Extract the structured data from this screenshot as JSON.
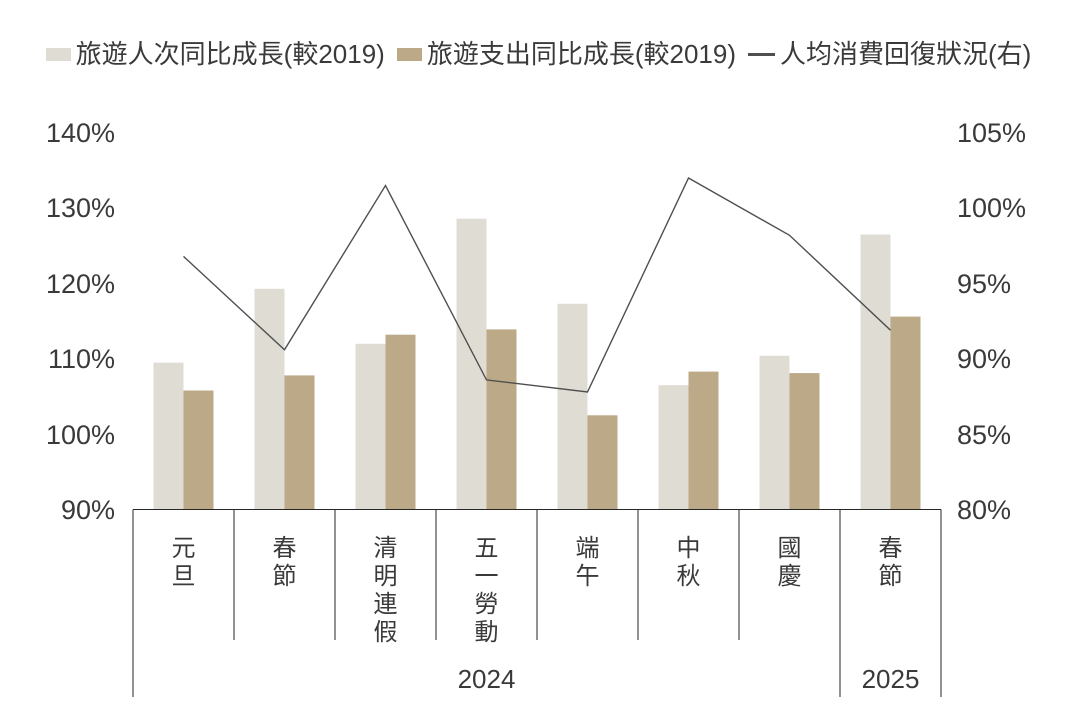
{
  "legend": {
    "items": [
      {
        "label": "旅遊人次同比成長(較2019)",
        "marker": "swatch",
        "color": "#DFDCD4"
      },
      {
        "label": "旅遊支出同比成長(較2019)",
        "marker": "swatch",
        "color": "#BCA987"
      },
      {
        "label": "人均消費回復狀況(右)",
        "marker": "line",
        "color": "#4F4F4F"
      }
    ]
  },
  "left_axis": {
    "ticks": [
      "140%",
      "130%",
      "120%",
      "110%",
      "100%",
      "90%"
    ]
  },
  "right_axis": {
    "ticks": [
      "105%",
      "100%",
      "95%",
      "90%",
      "85%",
      "80%"
    ]
  },
  "chart_data": {
    "type": "bar",
    "subtype": "grouped-bars-with-line-combo",
    "categories": [
      "元旦",
      "春節",
      "清明連假",
      "五一勞動",
      "端午",
      "中秋",
      "國慶",
      "春節"
    ],
    "year_groups": [
      {
        "label": "2024",
        "span": 7
      },
      {
        "label": "2025",
        "span": 1
      }
    ],
    "series": [
      {
        "name": "旅遊人次同比成長(較2019)",
        "type": "bar",
        "axis": "left",
        "color": "#DFDCD4",
        "values": [
          109.5,
          119.3,
          112.0,
          128.6,
          117.3,
          106.5,
          110.4,
          126.5
        ]
      },
      {
        "name": "旅遊支出同比成長(較2019)",
        "type": "bar",
        "axis": "left",
        "color": "#BCA987",
        "values": [
          105.8,
          107.8,
          113.2,
          113.9,
          102.5,
          108.3,
          108.1,
          115.6
        ]
      },
      {
        "name": "人均消費回復狀況(右)",
        "type": "line",
        "axis": "right",
        "color": "#4F4F4F",
        "values": [
          96.8,
          90.6,
          101.5,
          88.6,
          87.8,
          102.0,
          98.2,
          91.9
        ]
      }
    ],
    "left_ylim": [
      90,
      140
    ],
    "right_ylim": [
      80,
      105
    ],
    "left_tick_format": "percent",
    "right_tick_format": "percent",
    "grid": false,
    "legend_position": "top",
    "axis_line_color": "#262626",
    "text_color": "#3a3a3a"
  }
}
